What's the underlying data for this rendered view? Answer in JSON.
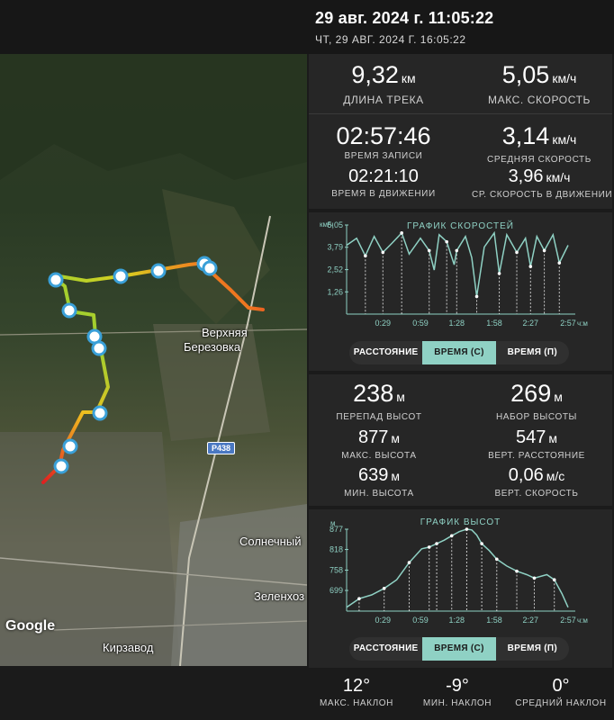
{
  "header": {
    "title": "29 авг. 2024 г. 11:05:22",
    "subtitle": "ЧТ, 29 АВГ. 2024 Г. 16:05:22"
  },
  "map": {
    "labels": {
      "village1": "Верхняя",
      "village2": "Березовка",
      "solnechny": "Солнечный",
      "zelenhoz": "Зеленхоз",
      "kirzavod": "Кирзавод"
    },
    "road_shield": "Р438",
    "logo": "Google"
  },
  "stats": {
    "track_length": {
      "value": "9,32",
      "unit": "км",
      "label": "ДЛИНА ТРЕКА"
    },
    "max_speed": {
      "value": "5,05",
      "unit": "км/ч",
      "label": "МАКС. СКОРОСТЬ"
    },
    "record_time": {
      "value": "02:57:46",
      "label": "ВРЕМЯ ЗАПИСИ"
    },
    "avg_speed": {
      "value": "3,14",
      "unit": "км/ч",
      "label": "СРЕДНЯЯ СКОРОСТЬ"
    },
    "moving_time": {
      "value": "02:21:10",
      "label": "ВРЕМЯ В ДВИЖЕНИИ"
    },
    "avg_moving_speed": {
      "value": "3,96",
      "unit": "км/ч",
      "label": "СР. СКОРОСТЬ В ДВИЖЕНИИ"
    }
  },
  "speed_chart": {
    "title": "ГРАФИК СКОРОСТЕЙ",
    "y_unit": "км/ч",
    "y_ticks": [
      "5,05",
      "3,79",
      "2,52",
      "1,26"
    ],
    "x_ticks": [
      "0:29",
      "0:59",
      "1:28",
      "1:58",
      "2:27",
      "2:57"
    ],
    "x_unit": "ч:м",
    "color": "#8fd1c4"
  },
  "speed_toggle": {
    "options": [
      "РАССТОЯНИЕ",
      "ВРЕМЯ (С)",
      "ВРЕМЯ (П)"
    ],
    "active": "ВРЕМЯ (С)"
  },
  "elevation_stats": {
    "elev_diff": {
      "value": "238",
      "unit": "м",
      "label": "ПЕРЕПАД ВЫСОТ"
    },
    "gain": {
      "value": "269",
      "unit": "м",
      "label": "НАБОР ВЫСОТЫ"
    },
    "max_alt": {
      "value": "877",
      "unit": "м",
      "label": "МАКС. ВЫСОТА"
    },
    "vert_distance": {
      "value": "547",
      "unit": "м",
      "label": "ВЕРТ. РАССТОЯНИЕ"
    },
    "min_alt": {
      "value": "639",
      "unit": "м",
      "label": "МИН. ВЫСОТА"
    },
    "vert_speed": {
      "value": "0,06",
      "unit": "м/с",
      "label": "ВЕРТ. СКОРОСТЬ"
    }
  },
  "elevation_chart": {
    "title": "ГРАФИК ВЫСОТ",
    "y_unit": "м",
    "y_ticks": [
      "877",
      "818",
      "758",
      "699"
    ],
    "x_ticks": [
      "0:29",
      "0:59",
      "1:28",
      "1:58",
      "2:27",
      "2:57"
    ],
    "x_unit": "ч:м",
    "color": "#8fd1c4"
  },
  "elevation_toggle": {
    "options": [
      "РАССТОЯНИЕ",
      "ВРЕМЯ (С)",
      "ВРЕМЯ (П)"
    ],
    "active": "ВРЕМЯ (С)"
  },
  "slope": {
    "max": {
      "value": "12°",
      "label": "МАКС. НАКЛОН"
    },
    "min": {
      "value": "-9°",
      "label": "МИН. НАКЛОН"
    },
    "avg": {
      "value": "0°",
      "label": "СРЕДНИЙ НАКЛОН"
    }
  },
  "chart_data": [
    {
      "type": "line",
      "ylabel": "км/ч",
      "xlabel": "ч:м",
      "ylim": [
        0,
        5.05
      ],
      "x_ticks": [
        "0:29",
        "0:59",
        "1:28",
        "1:58",
        "2:27",
        "2:57"
      ],
      "series": [
        {
          "x_min": [
            0,
            8,
            15,
            22,
            29,
            36,
            44,
            50,
            59,
            66,
            70,
            74,
            80,
            86,
            88,
            95,
            100,
            104,
            110,
            118,
            122,
            128,
            136,
            143,
            147,
            152,
            158,
            165,
            170,
            177
          ],
          "values": [
            3.9,
            4.3,
            3.3,
            4.4,
            3.5,
            4.0,
            4.6,
            3.4,
            4.3,
            3.6,
            2.5,
            4.5,
            4.1,
            2.8,
            3.6,
            4.4,
            3.2,
            1.0,
            3.8,
            4.6,
            2.3,
            4.5,
            3.5,
            4.3,
            2.7,
            4.4,
            3.6,
            4.5,
            2.9,
            3.9
          ]
        }
      ]
    },
    {
      "type": "area",
      "ylabel": "м",
      "xlabel": "ч:м",
      "ylim": [
        639,
        877
      ],
      "x_ticks": [
        "0:29",
        "0:59",
        "1:28",
        "1:58",
        "2:27",
        "2:57"
      ],
      "series": [
        {
          "x_min": [
            0,
            10,
            20,
            30,
            40,
            50,
            60,
            66,
            72,
            78,
            84,
            90,
            96,
            100,
            104,
            108,
            114,
            120,
            128,
            136,
            144,
            150,
            160,
            166,
            172,
            177
          ],
          "values": [
            650,
            675,
            686,
            705,
            730,
            780,
            820,
            825,
            835,
            845,
            858,
            870,
            877,
            875,
            860,
            835,
            815,
            790,
            770,
            755,
            745,
            735,
            745,
            730,
            690,
            650
          ]
        }
      ]
    }
  ]
}
